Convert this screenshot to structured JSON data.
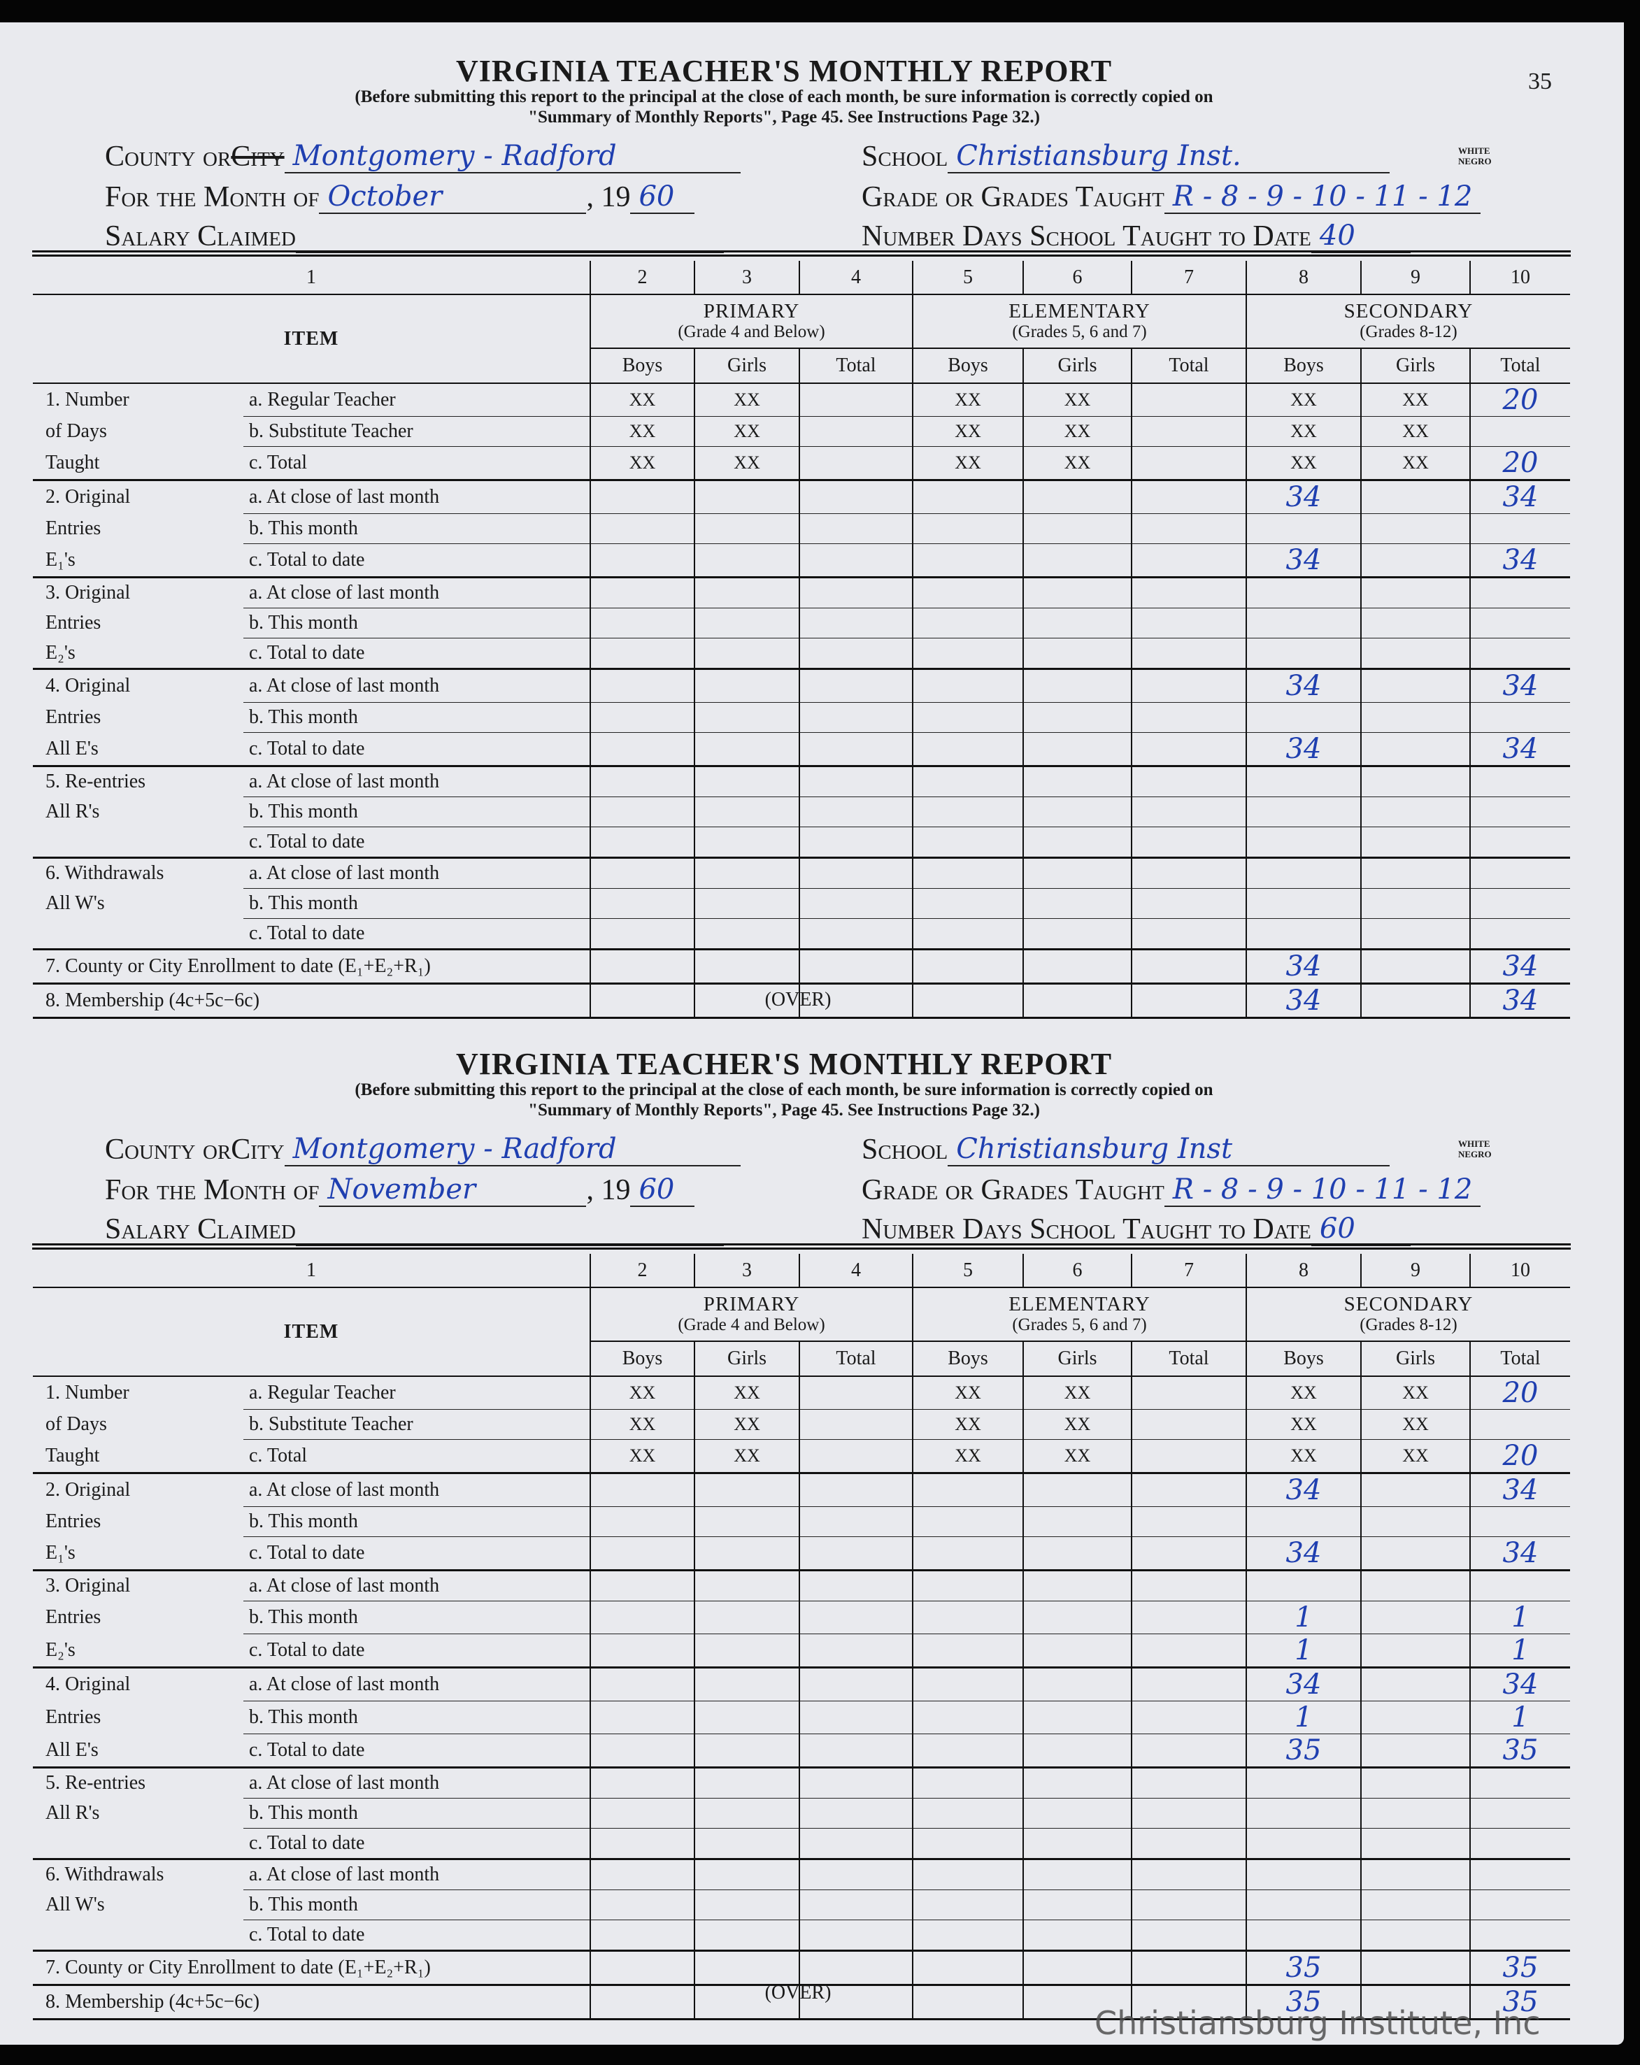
{
  "page_number": "35",
  "watermark": "Christiansburg Institute, Inc",
  "colors": {
    "ink": "#1f3fb0",
    "paper": "#e9eaee"
  },
  "form": {
    "title": "VIRGINIA TEACHER'S MONTHLY REPORT",
    "subtitle_line1": "(Before submitting this report to the principal at the close of each month, be sure information is correctly copied on",
    "subtitle_line2": "\"Summary of Monthly Reports\", Page 45.  See Instructions Page 32.)",
    "county_label": "County or ",
    "city_label": "City",
    "month_label": "For the Month of",
    "year_prefix": ", 19",
    "salary_label": "Salary Claimed",
    "school_label": "School",
    "white_label": "WHITE",
    "negro_label": "NEGRO",
    "grades_label": "Grade or Grades Taught",
    "days_label": "Number Days School Taught to Date",
    "col_numbers": [
      "1",
      "2",
      "3",
      "4",
      "5",
      "6",
      "7",
      "8",
      "9",
      "10"
    ],
    "item_header": "ITEM",
    "groups": [
      {
        "name": "PRIMARY",
        "sub": "(Grade 4 and Below)"
      },
      {
        "name": "ELEMENTARY",
        "sub": "(Grades 5, 6 and 7)"
      },
      {
        "name": "SECONDARY",
        "sub": "(Grades 8-12)"
      }
    ],
    "subcols": [
      "Boys",
      "Girls",
      "Total",
      "Boys",
      "Girls",
      "Total",
      "Boys",
      "Girls",
      "Total"
    ],
    "over": "(OVER)",
    "items": [
      {
        "group": [
          "1. Number",
          "of Days",
          "Taught"
        ],
        "subs": [
          "a. Regular Teacher",
          "b. Substitute Teacher",
          "c. Total"
        ]
      },
      {
        "group": [
          "2. Original",
          "Entries",
          "E₁'s"
        ],
        "subs": [
          "a. At close of last month",
          "b. This month",
          "c. Total to date"
        ]
      },
      {
        "group": [
          "3. Original",
          "Entries",
          "E₂'s"
        ],
        "subs": [
          "a. At close of last month",
          "b. This month",
          "c. Total to date"
        ]
      },
      {
        "group": [
          "4. Original",
          "Entries",
          "All E's"
        ],
        "subs": [
          "a. At close of last month",
          "b. This month",
          "c. Total to date"
        ]
      },
      {
        "group": [
          "5. Re-entries",
          "All R's",
          ""
        ],
        "subs": [
          "a. At close of last month",
          "b. This month",
          "c. Total to date"
        ]
      },
      {
        "group": [
          "6. Withdrawals",
          "All W's",
          ""
        ],
        "subs": [
          "a. At close of last month",
          "b. This month",
          "c. Total to date"
        ]
      },
      {
        "full": "7. County or City Enrollment to date (E₁+E₂+R₁)"
      },
      {
        "full": "8. Membership (4c+5c−6c)"
      }
    ]
  },
  "reports": [
    {
      "county": "Montgomery - Radford",
      "city_struck": true,
      "month": "October",
      "year": "60",
      "salary": "",
      "school": "Christiansburg Inst.",
      "grades": "R - 8 - 9 - 10 - 11 - 12",
      "days": "40",
      "rows": [
        [
          "XX",
          "XX",
          "",
          "XX",
          "XX",
          "",
          "XX",
          "XX",
          "20"
        ],
        [
          "XX",
          "XX",
          "",
          "XX",
          "XX",
          "",
          "XX",
          "XX",
          ""
        ],
        [
          "XX",
          "XX",
          "",
          "XX",
          "XX",
          "",
          "XX",
          "XX",
          "20"
        ],
        [
          "",
          "",
          "",
          "",
          "",
          "",
          "34",
          "",
          "34"
        ],
        [
          "",
          "",
          "",
          "",
          "",
          "",
          "",
          "",
          ""
        ],
        [
          "",
          "",
          "",
          "",
          "",
          "",
          "34",
          "",
          "34"
        ],
        [
          "",
          "",
          "",
          "",
          "",
          "",
          "",
          "",
          ""
        ],
        [
          "",
          "",
          "",
          "",
          "",
          "",
          "",
          "",
          ""
        ],
        [
          "",
          "",
          "",
          "",
          "",
          "",
          "",
          "",
          ""
        ],
        [
          "",
          "",
          "",
          "",
          "",
          "",
          "34",
          "",
          "34"
        ],
        [
          "",
          "",
          "",
          "",
          "",
          "",
          "",
          "",
          ""
        ],
        [
          "",
          "",
          "",
          "",
          "",
          "",
          "34",
          "",
          "34"
        ],
        [
          "",
          "",
          "",
          "",
          "",
          "",
          "",
          "",
          ""
        ],
        [
          "",
          "",
          "",
          "",
          "",
          "",
          "",
          "",
          ""
        ],
        [
          "",
          "",
          "",
          "",
          "",
          "",
          "",
          "",
          ""
        ],
        [
          "",
          "",
          "",
          "",
          "",
          "",
          "",
          "",
          ""
        ],
        [
          "",
          "",
          "",
          "",
          "",
          "",
          "",
          "",
          ""
        ],
        [
          "",
          "",
          "",
          "",
          "",
          "",
          "",
          "",
          ""
        ],
        [
          "",
          "",
          "",
          "",
          "",
          "",
          "34",
          "",
          "34"
        ],
        [
          "",
          "",
          "",
          "",
          "",
          "",
          "34",
          "",
          "34"
        ]
      ]
    },
    {
      "county": "Montgomery - Radford",
      "city_struck": false,
      "month": "November",
      "year": "60",
      "salary": "",
      "school": "Christiansburg Inst",
      "grades": "R - 8 - 9 - 10 - 11 - 12",
      "days": "60",
      "rows": [
        [
          "XX",
          "XX",
          "",
          "XX",
          "XX",
          "",
          "XX",
          "XX",
          "20"
        ],
        [
          "XX",
          "XX",
          "",
          "XX",
          "XX",
          "",
          "XX",
          "XX",
          ""
        ],
        [
          "XX",
          "XX",
          "",
          "XX",
          "XX",
          "",
          "XX",
          "XX",
          "20"
        ],
        [
          "",
          "",
          "",
          "",
          "",
          "",
          "34",
          "",
          "34"
        ],
        [
          "",
          "",
          "",
          "",
          "",
          "",
          "",
          "",
          ""
        ],
        [
          "",
          "",
          "",
          "",
          "",
          "",
          "34",
          "",
          "34"
        ],
        [
          "",
          "",
          "",
          "",
          "",
          "",
          "",
          "",
          ""
        ],
        [
          "",
          "",
          "",
          "",
          "",
          "",
          "1",
          "",
          "1"
        ],
        [
          "",
          "",
          "",
          "",
          "",
          "",
          "1",
          "",
          "1"
        ],
        [
          "",
          "",
          "",
          "",
          "",
          "",
          "34",
          "",
          "34"
        ],
        [
          "",
          "",
          "",
          "",
          "",
          "",
          "1",
          "",
          "1"
        ],
        [
          "",
          "",
          "",
          "",
          "",
          "",
          "35",
          "",
          "35"
        ],
        [
          "",
          "",
          "",
          "",
          "",
          "",
          "",
          "",
          ""
        ],
        [
          "",
          "",
          "",
          "",
          "",
          "",
          "",
          "",
          ""
        ],
        [
          "",
          "",
          "",
          "",
          "",
          "",
          "",
          "",
          ""
        ],
        [
          "",
          "",
          "",
          "",
          "",
          "",
          "",
          "",
          ""
        ],
        [
          "",
          "",
          "",
          "",
          "",
          "",
          "",
          "",
          ""
        ],
        [
          "",
          "",
          "",
          "",
          "",
          "",
          "",
          "",
          ""
        ],
        [
          "",
          "",
          "",
          "",
          "",
          "",
          "35",
          "",
          "35"
        ],
        [
          "",
          "",
          "",
          "",
          "",
          "",
          "35",
          "",
          "35"
        ]
      ]
    }
  ]
}
